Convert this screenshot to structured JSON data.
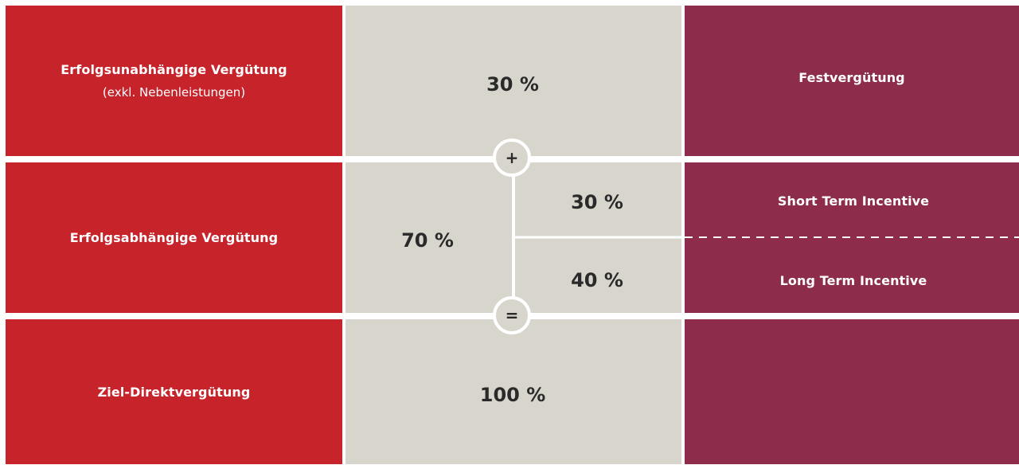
{
  "rows": {
    "fixed": {
      "label": "Erfolgsunabhängige Vergütung",
      "sublabel": "(exkl. Nebenleistungen)",
      "percent": "30 %",
      "component": "Festvergütung"
    },
    "variable": {
      "label": "Erfolgsabhängige Vergütung",
      "percent": "70 %",
      "sti_percent": "30 %",
      "lti_percent": "40 %",
      "sti_label": "Short Term Incentive",
      "lti_label": "Long Term Incentive"
    },
    "total": {
      "label": "Ziel-Direktvergütung",
      "percent": "100 %",
      "component": ""
    }
  },
  "operators": {
    "plus": "+",
    "equals": "="
  },
  "colors": {
    "left": "#c6232b",
    "middle": "#d8d6cc",
    "right": "#8e2d4b",
    "text_dark": "#2a2a2a"
  }
}
